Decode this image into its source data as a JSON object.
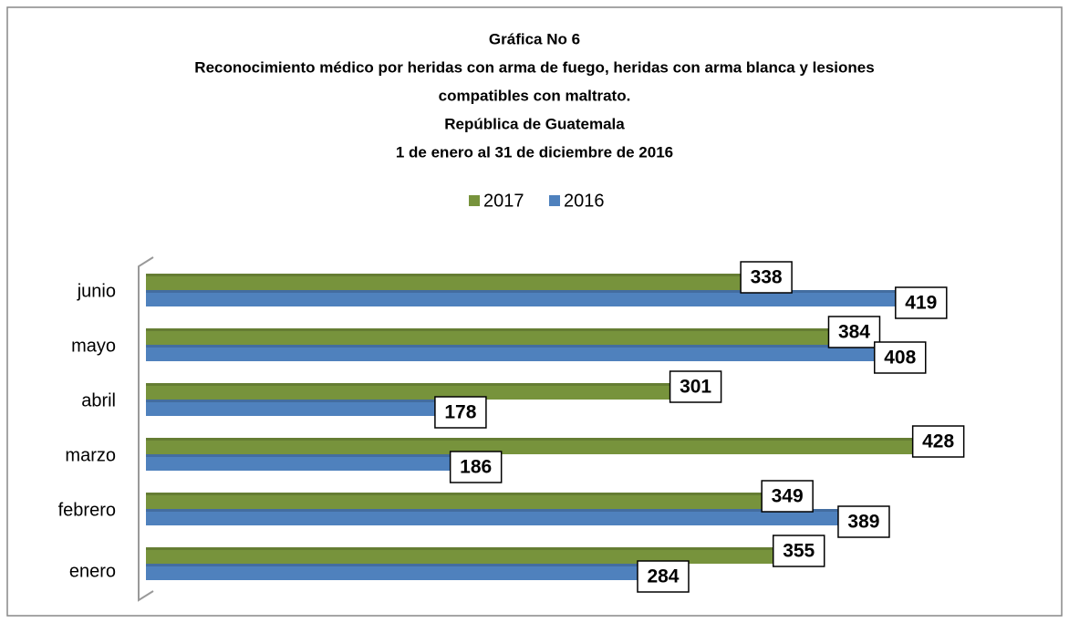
{
  "chart_data": {
    "type": "bar",
    "orientation": "horizontal",
    "title": [
      "Gráfica No 6",
      "Reconocimiento médico por heridas con arma de fuego, heridas con arma blanca y lesiones",
      "compatibles con maltrato.",
      "República de Guatemala",
      "1 de enero al 31 de diciembre de 2016"
    ],
    "categories": [
      "enero",
      "febrero",
      "marzo",
      "abril",
      "mayo",
      "junio"
    ],
    "series": [
      {
        "name": "2017",
        "color": "#77933c",
        "values": [
          355,
          349,
          428,
          301,
          384,
          338
        ]
      },
      {
        "name": "2016",
        "color": "#4f81bd",
        "values": [
          284,
          389,
          186,
          178,
          408,
          419
        ]
      }
    ],
    "legend": "top"
  }
}
